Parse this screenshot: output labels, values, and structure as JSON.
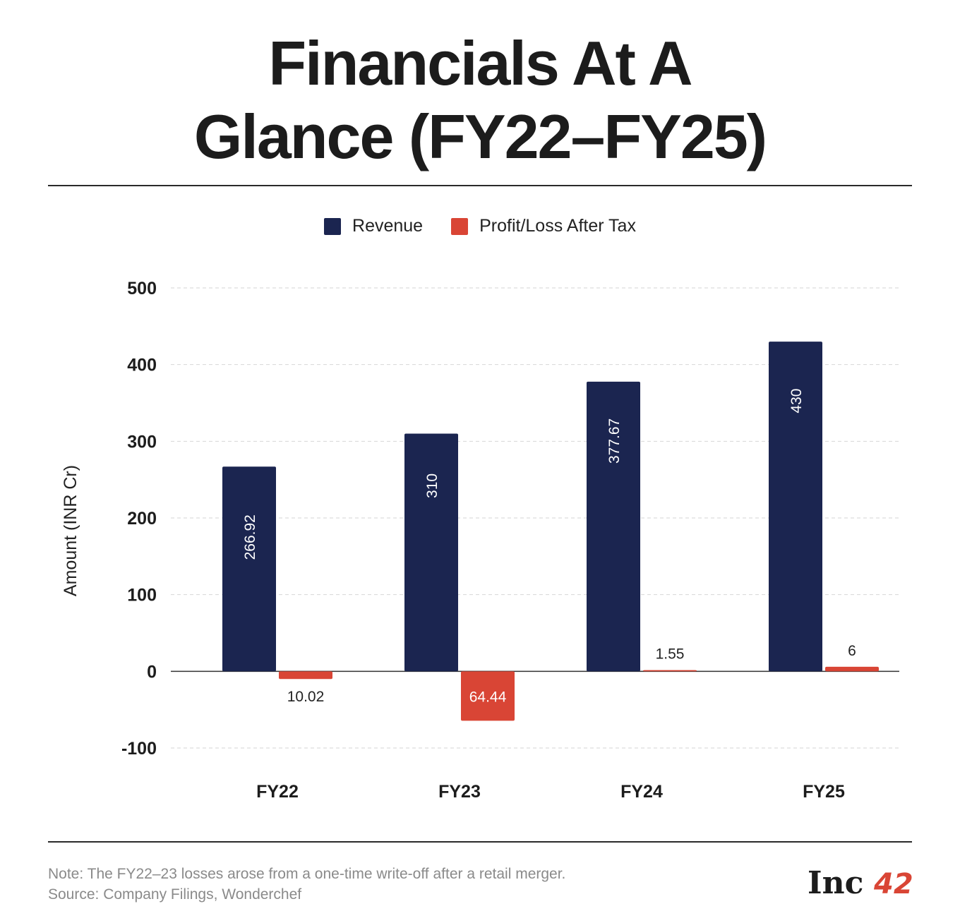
{
  "title_line1": "Financials At A",
  "title_line2": "Glance (FY22–FY25)",
  "note": "Note: The FY22–23 losses arose from a one-time write-off after a retail merger.",
  "source": "Source: Company Filings, Wonderchef",
  "logo_text": "Inc42",
  "colors": {
    "revenue": "#1b2550",
    "profit": "#d94535"
  },
  "chart_data": {
    "type": "bar",
    "categories": [
      "FY22",
      "FY23",
      "FY24",
      "FY25"
    ],
    "series": [
      {
        "name": "Revenue",
        "values": [
          266.92,
          310,
          377.67,
          430
        ],
        "labels": [
          "266.92",
          "310",
          "377.67",
          "430"
        ]
      },
      {
        "name": "Profit/Loss After Tax",
        "values": [
          -10.02,
          -64.44,
          1.55,
          6
        ],
        "labels": [
          "10.02",
          "64.44",
          "1.55",
          "6"
        ]
      }
    ],
    "ylabel": "Amount (INR Cr)",
    "xlabel": "",
    "ylim": [
      -100,
      500
    ],
    "yticks": [
      500,
      400,
      300,
      200,
      100,
      0,
      -100
    ],
    "grid": true,
    "legend": "top-center"
  }
}
